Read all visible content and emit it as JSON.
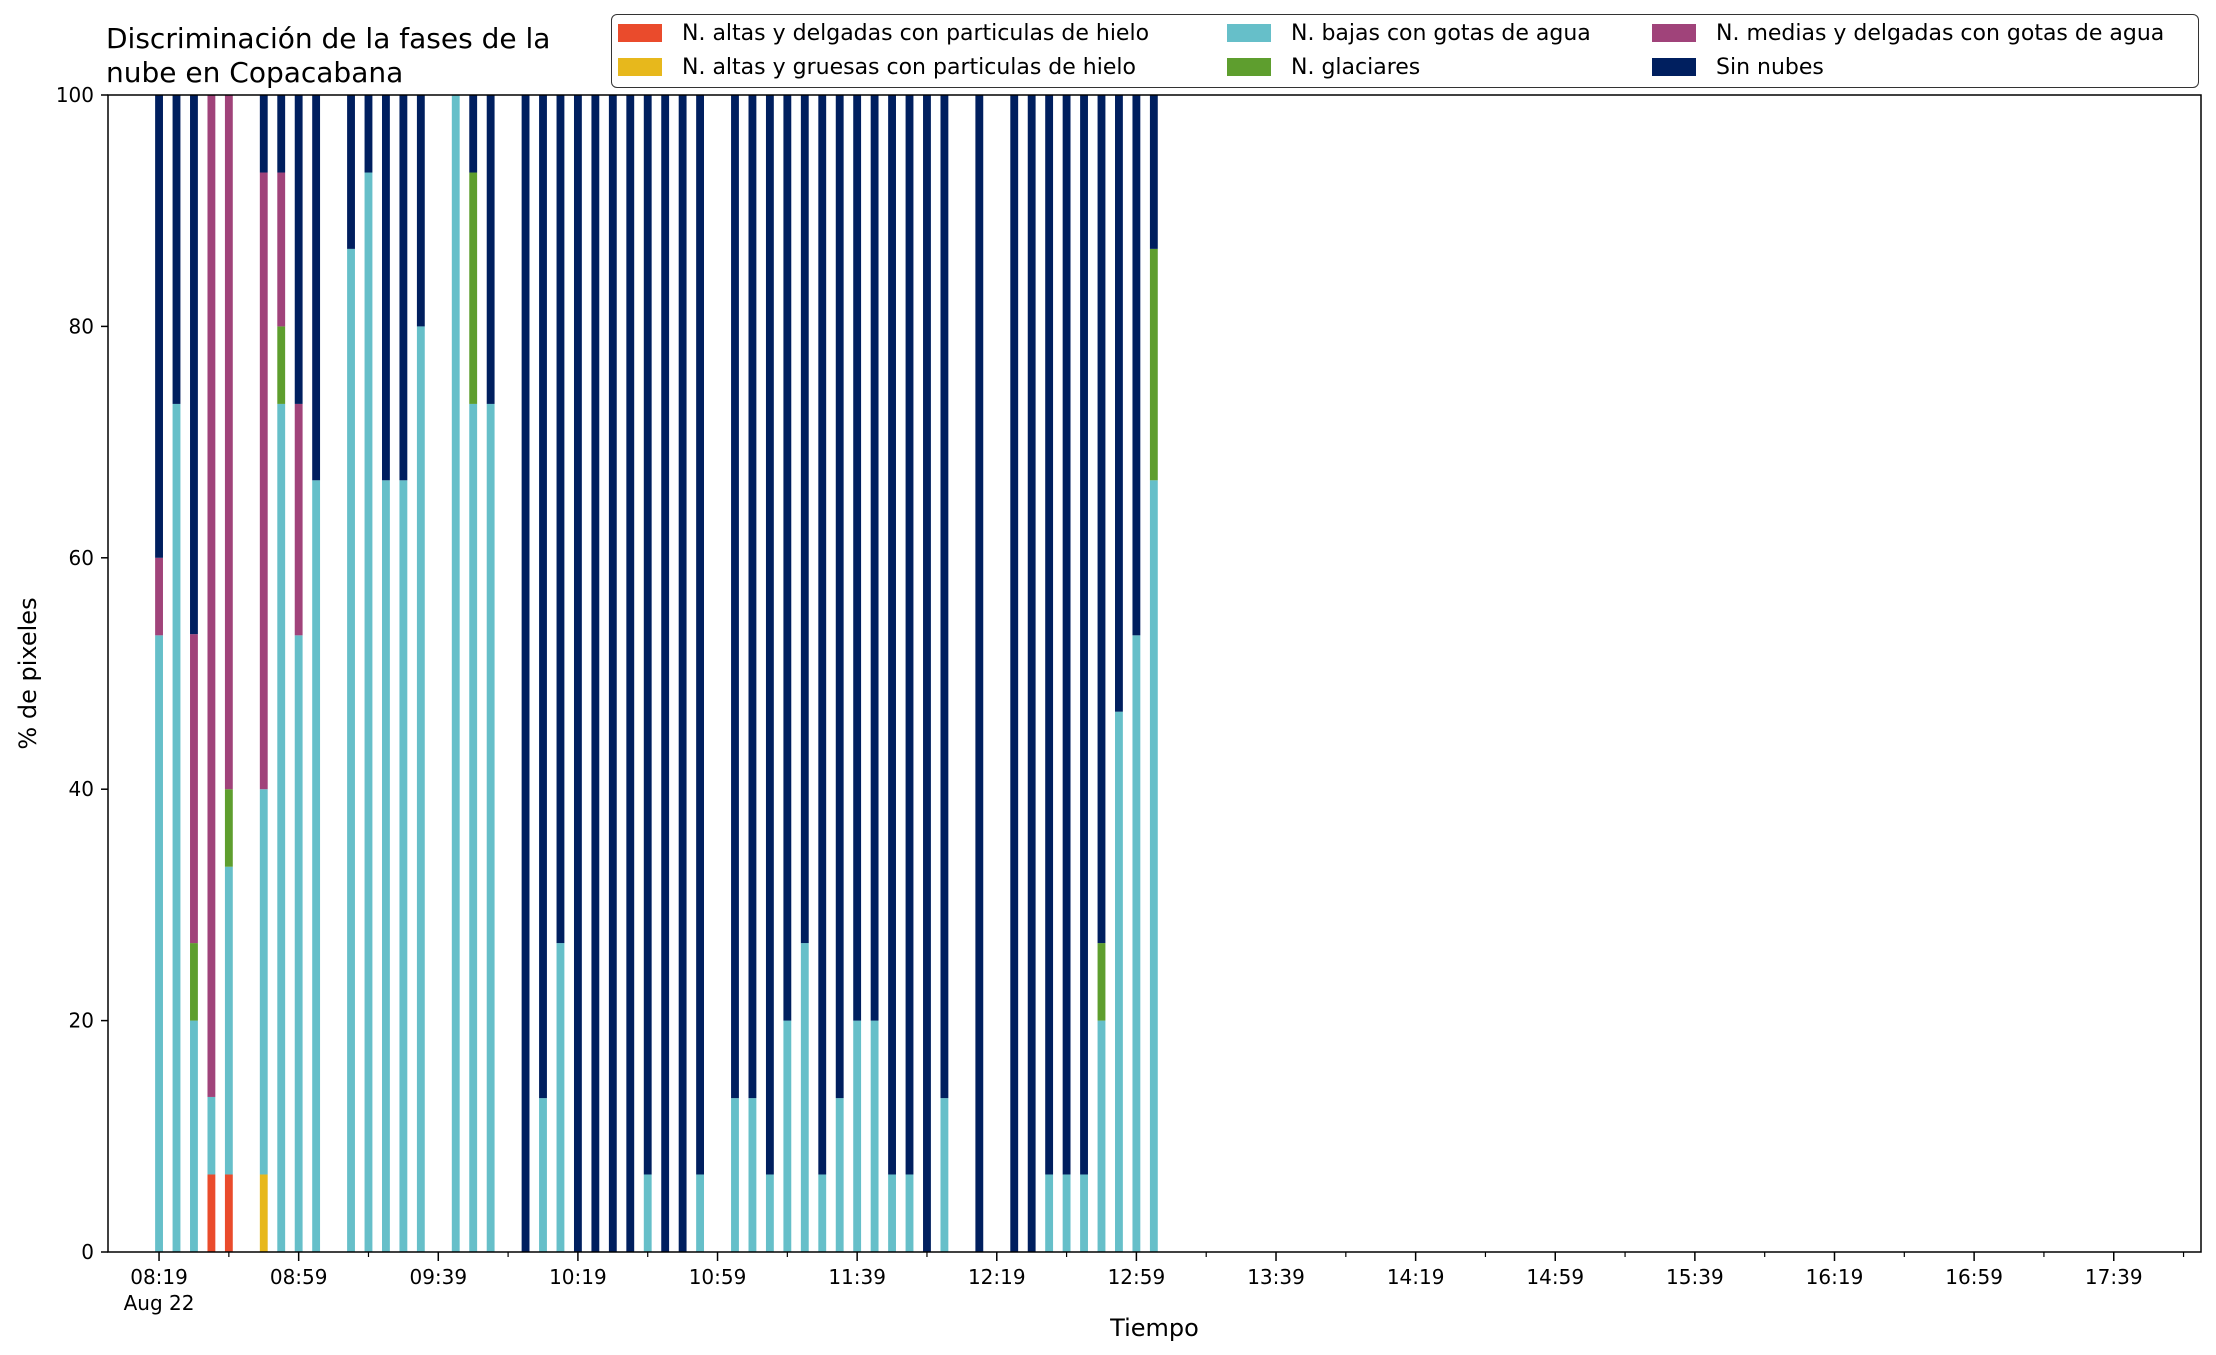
{
  "chart_data": {
    "type": "bar",
    "stacked": true,
    "title": "Discriminación de la fases de la\nnube en Copacabana",
    "xlabel": "Tiempo",
    "ylabel": "% de pixeles",
    "ylim": [
      0,
      100
    ],
    "yticks": [
      0,
      20,
      40,
      60,
      80,
      100
    ],
    "grid": false,
    "legend_position": "top-right",
    "legend_columns": 3,
    "x_tick_labels": [
      "08:19\nAug 22",
      "08:59",
      "09:39",
      "10:19",
      "10:59",
      "11:39",
      "12:19",
      "12:59",
      "13:39",
      "14:19",
      "14:59",
      "15:39",
      "16:19",
      "16:59",
      "17:39"
    ],
    "x_start": "08:19",
    "x_end": "18:04",
    "x_interval_minutes": 5,
    "categories": [
      "08:19",
      "08:24",
      "08:29",
      "08:34",
      "08:39",
      "08:44",
      "08:49",
      "08:54",
      "08:59",
      "09:04",
      "09:09",
      "09:14",
      "09:19",
      "09:24",
      "09:29",
      "09:34",
      "09:39",
      "09:44",
      "09:49",
      "09:54",
      "09:59",
      "10:04",
      "10:09",
      "10:14",
      "10:19",
      "10:24",
      "10:29",
      "10:34",
      "10:39",
      "10:44",
      "10:49",
      "10:54",
      "10:59",
      "11:04",
      "11:09",
      "11:14",
      "11:19",
      "11:24",
      "11:29",
      "11:34",
      "11:39",
      "11:44",
      "11:49",
      "11:54",
      "11:59",
      "12:04",
      "12:09",
      "12:14",
      "12:19",
      "12:24",
      "12:29",
      "12:34",
      "12:39",
      "12:44",
      "12:49",
      "12:54",
      "12:59",
      "13:04",
      "13:09",
      "13:14",
      "13:19",
      "13:24",
      "13:29",
      "13:34",
      "13:39",
      "13:44",
      "13:49",
      "13:54",
      "13:59",
      "14:04",
      "14:09",
      "14:14",
      "14:19",
      "14:24",
      "14:29",
      "14:34",
      "14:39",
      "14:44",
      "14:49",
      "14:54",
      "14:59",
      "15:04",
      "15:09",
      "15:14",
      "15:19",
      "15:24",
      "15:29",
      "15:34",
      "15:39",
      "15:44",
      "15:49",
      "15:54",
      "15:59",
      "16:04",
      "16:09",
      "16:14",
      "16:19",
      "16:24",
      "16:29",
      "16:34",
      "16:39",
      "16:44",
      "16:49",
      "16:54",
      "16:59",
      "17:04",
      "17:09",
      "17:14",
      "17:19",
      "17:24",
      "17:29",
      "17:34",
      "17:39",
      "17:44",
      "17:49",
      "17:54",
      "17:59",
      "18:04"
    ],
    "bars": [
      {
        "time": "08:19",
        "values": [
          0,
          0,
          53.3,
          0,
          6.7,
          40
        ]
      },
      {
        "time": "08:24",
        "values": [
          0,
          0,
          73.3,
          0,
          0,
          26.7
        ]
      },
      {
        "time": "08:29",
        "values": [
          0,
          0,
          20,
          6.7,
          26.7,
          46.6
        ]
      },
      {
        "time": "08:34",
        "values": [
          6.7,
          0,
          6.7,
          0,
          86.6,
          0
        ]
      },
      {
        "time": "08:39",
        "values": [
          6.7,
          0,
          26.6,
          6.7,
          60,
          0
        ]
      },
      {
        "time": "08:49",
        "values": [
          0,
          6.7,
          33.3,
          0,
          53.3,
          6.7
        ]
      },
      {
        "time": "08:54",
        "values": [
          0,
          0,
          73.3,
          6.7,
          13.3,
          6.7
        ]
      },
      {
        "time": "08:59",
        "values": [
          0,
          0,
          53.3,
          0,
          20,
          26.7
        ]
      },
      {
        "time": "09:04",
        "values": [
          0,
          0,
          66.7,
          0,
          0,
          33.3
        ]
      },
      {
        "time": "09:14",
        "values": [
          0,
          0,
          86.7,
          0,
          0,
          13.3
        ]
      },
      {
        "time": "09:19",
        "values": [
          0,
          0,
          93.3,
          0,
          0,
          6.7
        ]
      },
      {
        "time": "09:24",
        "values": [
          0,
          0,
          66.7,
          0,
          0,
          33.3
        ]
      },
      {
        "time": "09:29",
        "values": [
          0,
          0,
          66.7,
          0,
          0,
          33.3
        ]
      },
      {
        "time": "09:34",
        "values": [
          0,
          0,
          80,
          0,
          0,
          20
        ]
      },
      {
        "time": "09:44",
        "values": [
          0,
          0,
          100,
          0,
          0,
          0
        ]
      },
      {
        "time": "09:49",
        "values": [
          0,
          0,
          73.3,
          20,
          0,
          6.7
        ]
      },
      {
        "time": "09:54",
        "values": [
          0,
          0,
          73.3,
          0,
          0,
          26.7
        ]
      },
      {
        "time": "10:04",
        "values": [
          0,
          0,
          0,
          0,
          0,
          100
        ]
      },
      {
        "time": "10:09",
        "values": [
          0,
          0,
          13.3,
          0,
          0,
          86.7
        ]
      },
      {
        "time": "10:14",
        "values": [
          0,
          0,
          26.7,
          0,
          0,
          73.3
        ]
      },
      {
        "time": "10:19",
        "values": [
          0,
          0,
          0,
          0,
          0,
          100
        ]
      },
      {
        "time": "10:24",
        "values": [
          0,
          0,
          0,
          0,
          0,
          100
        ]
      },
      {
        "time": "10:29",
        "values": [
          0,
          0,
          0,
          0,
          0,
          100
        ]
      },
      {
        "time": "10:34",
        "values": [
          0,
          0,
          0,
          0,
          0,
          100
        ]
      },
      {
        "time": "10:39",
        "values": [
          0,
          0,
          6.7,
          0,
          0,
          93.3
        ]
      },
      {
        "time": "10:44",
        "values": [
          0,
          0,
          0,
          0,
          0,
          100
        ]
      },
      {
        "time": "10:49",
        "values": [
          0,
          0,
          0,
          0,
          0,
          100
        ]
      },
      {
        "time": "10:54",
        "values": [
          0,
          0,
          6.7,
          0,
          0,
          93.3
        ]
      },
      {
        "time": "11:04",
        "values": [
          0,
          0,
          13.3,
          0,
          0,
          86.7
        ]
      },
      {
        "time": "11:09",
        "values": [
          0,
          0,
          13.3,
          0,
          0,
          86.7
        ]
      },
      {
        "time": "11:14",
        "values": [
          0,
          0,
          6.7,
          0,
          0,
          93.3
        ]
      },
      {
        "time": "11:19",
        "values": [
          0,
          0,
          20,
          0,
          0,
          80
        ]
      },
      {
        "time": "11:24",
        "values": [
          0,
          0,
          26.7,
          0,
          0,
          73.3
        ]
      },
      {
        "time": "11:29",
        "values": [
          0,
          0,
          6.7,
          0,
          0,
          93.3
        ]
      },
      {
        "time": "11:34",
        "values": [
          0,
          0,
          13.3,
          0,
          0,
          86.7
        ]
      },
      {
        "time": "11:39",
        "values": [
          0,
          0,
          20,
          0,
          0,
          80
        ]
      },
      {
        "time": "11:44",
        "values": [
          0,
          0,
          20,
          0,
          0,
          80
        ]
      },
      {
        "time": "11:49",
        "values": [
          0,
          0,
          6.7,
          0,
          0,
          93.3
        ]
      },
      {
        "time": "11:54",
        "values": [
          0,
          0,
          6.7,
          0,
          0,
          93.3
        ]
      },
      {
        "time": "11:59",
        "values": [
          0,
          0,
          0,
          0,
          0,
          100
        ]
      },
      {
        "time": "12:04",
        "values": [
          0,
          0,
          13.3,
          0,
          0,
          86.7
        ]
      },
      {
        "time": "12:14",
        "values": [
          0,
          0,
          0,
          0,
          0,
          100
        ]
      },
      {
        "time": "12:24",
        "values": [
          0,
          0,
          0,
          0,
          0,
          100
        ]
      },
      {
        "time": "12:29",
        "values": [
          0,
          0,
          0,
          0,
          0,
          100
        ]
      },
      {
        "time": "12:34",
        "values": [
          0,
          0,
          6.7,
          0,
          0,
          93.3
        ]
      },
      {
        "time": "12:39",
        "values": [
          0,
          0,
          6.7,
          0,
          0,
          93.3
        ]
      },
      {
        "time": "12:44",
        "values": [
          0,
          0,
          6.7,
          0,
          0,
          93.3
        ]
      },
      {
        "time": "12:49",
        "values": [
          0,
          0,
          20,
          6.7,
          0,
          73.3
        ]
      },
      {
        "time": "12:54",
        "values": [
          0,
          0,
          46.7,
          0,
          0,
          53.3
        ]
      },
      {
        "time": "12:59",
        "values": [
          0,
          0,
          53.3,
          0,
          0,
          46.7
        ]
      },
      {
        "time": "13:04",
        "values": [
          0,
          0,
          66.7,
          20,
          0,
          13.3
        ]
      }
    ],
    "series": [
      {
        "name": "N. altas y delgadas con particulas de hielo",
        "color": "#ea4b2c"
      },
      {
        "name": "N. altas y gruesas con particulas de hielo",
        "color": "#e7b81c"
      },
      {
        "name": "N. bajas con gotas de agua",
        "color": "#66bfc9"
      },
      {
        "name": "N. glaciares",
        "color": "#5e9e2e"
      },
      {
        "name": "N. medias y delgadas con gotas de agua",
        "color": "#a0437a"
      },
      {
        "name": "Sin nubes",
        "color": "#001f5f"
      }
    ]
  }
}
